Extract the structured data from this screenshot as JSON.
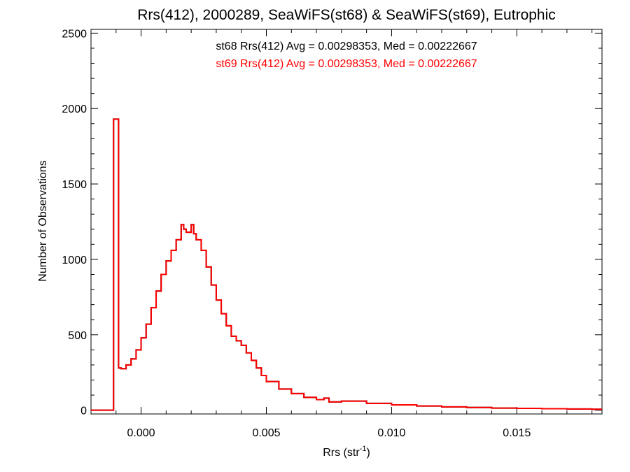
{
  "chart_data": {
    "type": "line",
    "title": "Rrs(412), 2000289, SeaWiFS(st68) & SeaWiFS(st69), Eutrophic",
    "xlabel_main": "Rrs (str",
    "xlabel_sup": "-1",
    "xlabel_close": ")",
    "ylabel": "Number of Observations",
    "xlim": [
      -0.002,
      0.0184
    ],
    "ylim": [
      -25,
      2525
    ],
    "x_ticks": [
      0.0,
      0.005,
      0.01,
      0.015
    ],
    "x_tick_labels": [
      "0.000",
      "0.005",
      "0.010",
      "0.015"
    ],
    "y_ticks": [
      0,
      500,
      1000,
      1500,
      2000,
      2500
    ],
    "y_tick_labels": [
      "0",
      "500",
      "1000",
      "1500",
      "2000",
      "2500"
    ],
    "annotations": [
      {
        "text": "st68 Rrs(412) Avg = 0.00298353, Med = 0.00222667",
        "color": "#000000"
      },
      {
        "text": "st69 Rrs(412) Avg = 0.00298353, Med = 0.00222667",
        "color": "#ff0000"
      }
    ],
    "series": [
      {
        "name": "st68",
        "color": "#000000",
        "style": "histogram-step",
        "x": [
          -0.002,
          -0.0011,
          -0.0009,
          -0.0008,
          -0.0006,
          -0.0004,
          -0.0002,
          0.0,
          0.0002,
          0.0004,
          0.0006,
          0.0008,
          0.001,
          0.0012,
          0.0014,
          0.0016,
          0.0017,
          0.0018,
          0.002,
          0.0021,
          0.0022,
          0.0024,
          0.0026,
          0.0028,
          0.003,
          0.0032,
          0.0034,
          0.0036,
          0.0038,
          0.004,
          0.0042,
          0.0044,
          0.0046,
          0.0048,
          0.005,
          0.0055,
          0.006,
          0.0065,
          0.007,
          0.0073,
          0.0075,
          0.008,
          0.009,
          0.01,
          0.011,
          0.012,
          0.013,
          0.014,
          0.015,
          0.016,
          0.017,
          0.018
        ],
        "y": [
          0,
          1930,
          280,
          275,
          300,
          340,
          400,
          480,
          570,
          680,
          790,
          900,
          990,
          1060,
          1130,
          1230,
          1200,
          1180,
          1230,
          1170,
          1130,
          1060,
          950,
          830,
          730,
          640,
          560,
          490,
          460,
          430,
          380,
          330,
          280,
          230,
          190,
          140,
          110,
          85,
          70,
          80,
          55,
          60,
          45,
          35,
          28,
          22,
          18,
          14,
          12,
          10,
          8,
          6
        ]
      },
      {
        "name": "st69",
        "color": "#ff0000",
        "style": "histogram-step",
        "x": [
          -0.002,
          -0.0011,
          -0.0009,
          -0.0008,
          -0.0006,
          -0.0004,
          -0.0002,
          0.0,
          0.0002,
          0.0004,
          0.0006,
          0.0008,
          0.001,
          0.0012,
          0.0014,
          0.0016,
          0.0017,
          0.0018,
          0.002,
          0.0021,
          0.0022,
          0.0024,
          0.0026,
          0.0028,
          0.003,
          0.0032,
          0.0034,
          0.0036,
          0.0038,
          0.004,
          0.0042,
          0.0044,
          0.0046,
          0.0048,
          0.005,
          0.0055,
          0.006,
          0.0065,
          0.007,
          0.0073,
          0.0075,
          0.008,
          0.009,
          0.01,
          0.011,
          0.012,
          0.013,
          0.014,
          0.015,
          0.016,
          0.017,
          0.018
        ],
        "y": [
          0,
          1930,
          280,
          275,
          300,
          340,
          400,
          480,
          570,
          680,
          790,
          900,
          990,
          1060,
          1130,
          1230,
          1200,
          1180,
          1230,
          1170,
          1130,
          1060,
          950,
          830,
          730,
          640,
          560,
          490,
          460,
          430,
          380,
          330,
          280,
          230,
          190,
          140,
          110,
          85,
          70,
          80,
          55,
          60,
          45,
          35,
          28,
          22,
          18,
          14,
          12,
          10,
          8,
          6
        ]
      }
    ]
  }
}
